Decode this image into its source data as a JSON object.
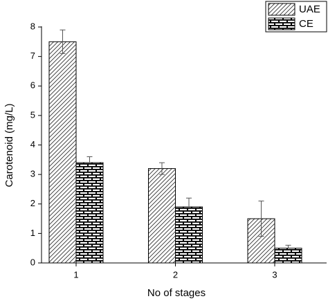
{
  "chart_data": {
    "type": "bar",
    "x_label": "No of stages",
    "y_label": "Carotenoid (mg/L)",
    "categories": [
      "1",
      "2",
      "3"
    ],
    "series": [
      {
        "name": "UAE",
        "color": "#000000",
        "pattern": "hatch",
        "values": [
          7.5,
          3.2,
          1.5
        ],
        "errors": [
          0.4,
          0.2,
          0.6
        ]
      },
      {
        "name": "CE",
        "color": "#000000",
        "pattern": "brick",
        "values": [
          3.4,
          1.9,
          0.5
        ],
        "errors": [
          0.2,
          0.3,
          0.1
        ]
      }
    ],
    "ylim": [
      0,
      8
    ],
    "yticks": [
      0,
      1,
      2,
      3,
      4,
      5,
      6,
      7,
      8
    ],
    "grid": false,
    "legend": "top-right"
  }
}
